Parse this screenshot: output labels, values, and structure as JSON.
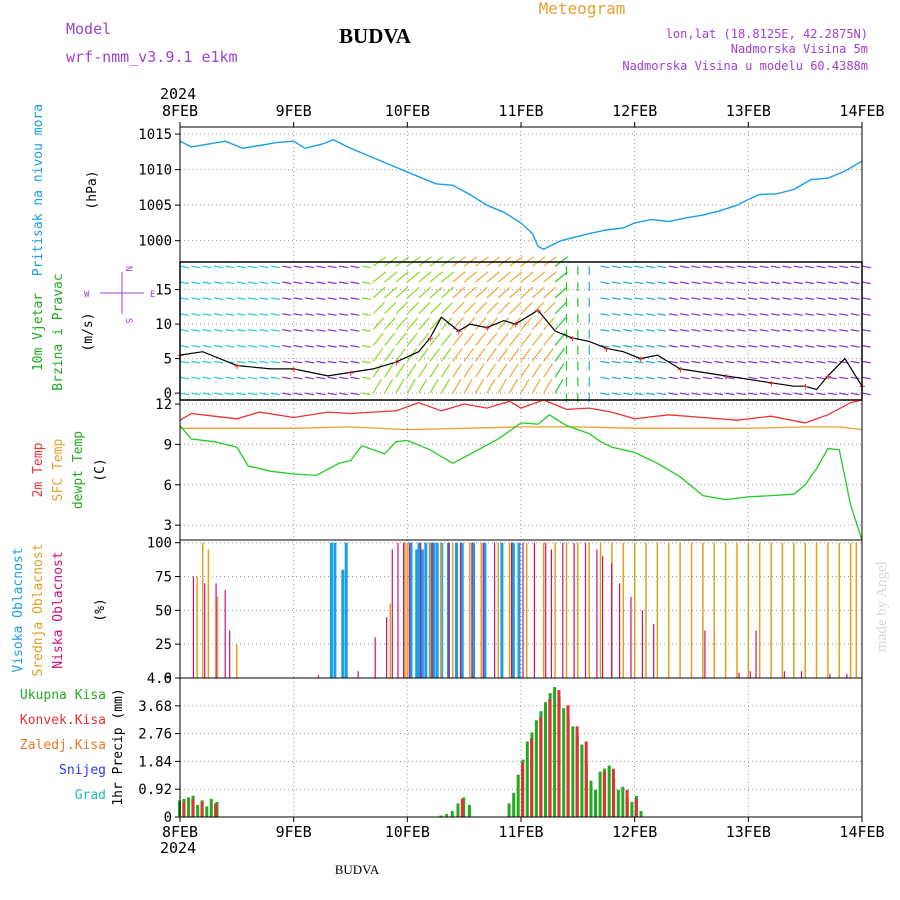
{
  "header": {
    "model_label": "Model",
    "model_name": "wrf-nmm_v3.9.1 e1km",
    "title": "BUDVA",
    "meteogram_label": "Meteogram",
    "lonlat": "lon,lat (18.8125E, 42.2875N)",
    "elevation": "Nadmorska Visina 5m",
    "model_elevation": "Nadmorska Visina u modelu 60.4388m",
    "footer": "BUDVA",
    "credit": "made by Angel"
  },
  "time_axis": {
    "year": "2024",
    "ticks": [
      "8FEB",
      "9FEB",
      "10FEB",
      "11FEB",
      "12FEB",
      "13FEB",
      "14FEB"
    ]
  },
  "colors": {
    "pressure": "#1a9ee8",
    "temp2m": "#ee3333",
    "sfc": "#e8a030",
    "dew": "#22cc22",
    "high_cloud": "#1a9ee8",
    "mid_cloud": "#e0a020",
    "low_cloud": "#cc1177",
    "precip_total": "#22aa22",
    "precip_conv": "#dd3333",
    "label_purple": "#a040d0",
    "label_orange": "#e8a030"
  },
  "chart_data": [
    {
      "type": "line",
      "panel": "pressure",
      "ylabel_left": "Pritisak na nivou mora",
      "ylabel_unit": "(hPa)",
      "ylim": [
        997,
        1016
      ],
      "yticks": [
        "1015",
        "1010",
        "1005",
        "1000"
      ],
      "grid": true,
      "series": [
        {
          "x": [
            8.0,
            8.1,
            8.25,
            8.4,
            8.55,
            8.7,
            8.85,
            9.0,
            9.1,
            9.25,
            9.35,
            9.5,
            9.65,
            9.8,
            9.95,
            10.1,
            10.25,
            10.4,
            10.55,
            10.7,
            10.85,
            11.0,
            11.1,
            11.15,
            11.2,
            11.25,
            11.35,
            11.5,
            11.6,
            11.75,
            11.9,
            12.0,
            12.15,
            12.3,
            12.45,
            12.6,
            12.75,
            12.9,
            13.0,
            13.1,
            13.25,
            13.4,
            13.55,
            13.7,
            13.85,
            14.0
          ],
          "values": [
            1014.0,
            1013.2,
            1013.6,
            1014.0,
            1013.0,
            1013.4,
            1013.8,
            1014.0,
            1013.0,
            1013.6,
            1014.2,
            1013.0,
            1012.0,
            1011.0,
            1010.0,
            1009.0,
            1008.0,
            1007.8,
            1006.5,
            1005.0,
            1004.0,
            1002.5,
            1001.0,
            999.2,
            998.8,
            999.2,
            1000.0,
            1000.6,
            1001.0,
            1001.5,
            1001.8,
            1002.5,
            1003.0,
            1002.7,
            1003.2,
            1003.6,
            1004.2,
            1005.0,
            1005.8,
            1006.5,
            1006.6,
            1007.2,
            1008.6,
            1008.8,
            1009.8,
            1011.2
          ]
        }
      ]
    },
    {
      "type": "line",
      "panel": "wind",
      "ylabel_left": "10m Vjetar",
      "ylabel_left2": "Brzina i Pravac",
      "ylabel_unit": "(m/s)",
      "rose": {
        "n": "N",
        "s": "S",
        "w": "W",
        "e": "E"
      },
      "ylim": [
        -1,
        19
      ],
      "yticks": [
        "15",
        "10",
        "5",
        "0"
      ],
      "grid": true,
      "series": [
        {
          "name": "",
          "x": [
            8.0,
            8.2,
            8.5,
            8.8,
            9.0,
            9.3,
            9.5,
            9.7,
            9.9,
            10.1,
            10.2,
            10.3,
            10.45,
            10.55,
            10.7,
            10.85,
            10.95,
            11.05,
            11.15,
            11.3,
            11.45,
            11.6,
            11.75,
            11.9,
            12.05,
            12.2,
            12.4,
            12.6,
            12.8,
            13.0,
            13.2,
            13.4,
            13.5,
            13.6,
            13.7,
            13.85,
            14.0
          ],
          "values": [
            5.5,
            6.0,
            4.0,
            3.5,
            3.5,
            2.5,
            3.0,
            3.5,
            4.5,
            6.0,
            8.0,
            11.0,
            9.0,
            10.0,
            9.5,
            10.5,
            10.0,
            11.0,
            12.0,
            9.0,
            8.0,
            7.5,
            6.5,
            6.0,
            5.0,
            5.5,
            3.5,
            3.0,
            2.5,
            2.0,
            1.5,
            1.0,
            1.0,
            0.5,
            2.5,
            5.0,
            1.0
          ]
        }
      ],
      "barbs": [
        {
          "x": 8.0,
          "speed": 5.5,
          "dir": 60
        },
        {
          "x": 8.5,
          "speed": 4.0,
          "dir": 70
        },
        {
          "x": 9.0,
          "speed": 3.5,
          "dir": 80
        },
        {
          "x": 9.5,
          "speed": 3.0,
          "dir": 90
        },
        {
          "x": 10.0,
          "speed": 5.0,
          "dir": 130
        },
        {
          "x": 10.5,
          "speed": 10.0,
          "dir": 150
        },
        {
          "x": 11.0,
          "speed": 11.0,
          "dir": 160
        },
        {
          "x": 11.3,
          "speed": 9.0,
          "dir": 230
        },
        {
          "x": 11.5,
          "speed": 8.0,
          "dir": 250
        },
        {
          "x": 12.0,
          "speed": 5.0,
          "dir": 60
        },
        {
          "x": 12.5,
          "speed": 3.5,
          "dir": 50
        },
        {
          "x": 13.0,
          "speed": 2.0,
          "dir": 40
        },
        {
          "x": 13.5,
          "speed": 1.0,
          "dir": 60
        },
        {
          "x": 14.0,
          "speed": 1.0,
          "dir": 70
        }
      ]
    },
    {
      "type": "line",
      "panel": "temperature",
      "ylabel_left": "2m Temp",
      "ylabel_left2": "SFC Temp",
      "ylabel_left3": "dewpt Temp",
      "ylabel_unit": "(C)",
      "ylim": [
        1.9,
        12.3
      ],
      "yticks": [
        "12",
        "9",
        "6",
        "3"
      ],
      "grid": true,
      "series": [
        {
          "name": "2m Temp",
          "x": [
            8.0,
            8.1,
            8.3,
            8.5,
            8.7,
            9.0,
            9.3,
            9.5,
            9.7,
            9.9,
            10.1,
            10.3,
            10.5,
            10.7,
            10.9,
            11.0,
            11.2,
            11.4,
            11.6,
            11.8,
            12.0,
            12.3,
            12.6,
            12.9,
            13.2,
            13.5,
            13.7,
            13.9,
            14.0
          ],
          "values": [
            10.8,
            11.3,
            11.1,
            10.9,
            11.4,
            11.0,
            11.4,
            11.3,
            11.4,
            11.5,
            12.1,
            11.5,
            12.0,
            11.7,
            12.2,
            11.7,
            12.3,
            11.6,
            11.7,
            11.4,
            10.9,
            11.2,
            11.0,
            10.8,
            11.1,
            10.6,
            11.2,
            12.1,
            12.3
          ]
        },
        {
          "name": "SFC Temp",
          "x": [
            8.0,
            8.5,
            9.0,
            9.5,
            10.0,
            10.5,
            11.0,
            11.5,
            12.0,
            12.5,
            13.0,
            13.5,
            13.8,
            14.0
          ],
          "values": [
            10.2,
            10.2,
            10.2,
            10.3,
            10.1,
            10.2,
            10.3,
            10.3,
            10.2,
            10.2,
            10.2,
            10.3,
            10.3,
            10.1
          ]
        },
        {
          "name": "dewpt Temp",
          "x": [
            8.0,
            8.1,
            8.3,
            8.5,
            8.6,
            8.8,
            9.0,
            9.2,
            9.4,
            9.5,
            9.6,
            9.8,
            9.9,
            10.0,
            10.2,
            10.4,
            10.6,
            10.8,
            11.0,
            11.15,
            11.25,
            11.4,
            11.5,
            11.6,
            11.7,
            11.8,
            12.0,
            12.2,
            12.4,
            12.6,
            12.8,
            13.0,
            13.2,
            13.4,
            13.5,
            13.6,
            13.7,
            13.8,
            13.9,
            14.0
          ],
          "values": [
            10.4,
            9.4,
            9.2,
            8.8,
            7.4,
            7.0,
            6.8,
            6.7,
            7.6,
            7.8,
            8.9,
            8.3,
            9.2,
            9.3,
            8.6,
            7.6,
            8.5,
            9.4,
            10.6,
            10.5,
            11.2,
            10.4,
            10.1,
            9.8,
            9.2,
            8.8,
            8.4,
            7.6,
            6.6,
            5.2,
            4.9,
            5.1,
            5.2,
            5.3,
            6.0,
            7.2,
            8.7,
            8.6,
            4.5,
            1.9
          ]
        }
      ]
    },
    {
      "type": "bar",
      "panel": "cloud",
      "ylabel_left": "Visoka Oblacnost",
      "ylabel_left2": "Srednja Oblacnost",
      "ylabel_left3": "Niska Oblacnost",
      "ylabel_unit": "(%)",
      "ylim": [
        0,
        102
      ],
      "yticks": [
        "100",
        "75",
        "50",
        "25",
        "0"
      ],
      "grid": true,
      "series": [
        {
          "name": "Visoka Oblacnost",
          "x": [
            9.35,
            9.38,
            9.45,
            9.48,
            10.05,
            10.1,
            10.12,
            10.15,
            10.18,
            10.22,
            10.25,
            10.28,
            10.32,
            10.38,
            10.45,
            10.5,
            10.6,
            10.7,
            10.85,
            10.95,
            11.0
          ],
          "values": [
            100,
            100,
            80,
            100,
            100,
            95,
            100,
            95,
            100,
            100,
            100,
            100,
            100,
            100,
            100,
            100,
            100,
            100,
            100,
            100,
            100
          ]
        },
        {
          "name": "Srednja Oblacnost",
          "x": [
            8.15,
            8.2,
            8.25,
            8.33,
            8.5,
            9.85,
            9.98,
            10.0,
            10.2,
            10.3,
            10.4,
            10.55,
            10.65,
            10.8,
            10.9,
            11.05,
            11.2,
            11.3,
            11.4,
            11.5,
            11.6,
            11.7,
            11.8,
            11.9,
            12.0,
            12.1,
            12.2,
            12.3,
            12.4,
            12.5,
            12.6,
            12.7,
            12.8,
            12.9,
            13.0,
            13.1,
            13.2,
            13.3,
            13.4,
            13.5,
            13.6,
            13.7,
            13.8,
            13.9,
            13.95
          ],
          "values": [
            75,
            100,
            95,
            60,
            25,
            55,
            100,
            100,
            100,
            100,
            100,
            100,
            100,
            100,
            100,
            100,
            100,
            100,
            100,
            100,
            100,
            100,
            100,
            100,
            100,
            100,
            100,
            100,
            100,
            100,
            100,
            100,
            100,
            100,
            100,
            100,
            100,
            100,
            100,
            100,
            100,
            100,
            100,
            100,
            100
          ]
        },
        {
          "name": "Niska Oblacnost",
          "x": [
            8.1,
            8.2,
            8.3,
            8.38,
            8.42,
            9.2,
            9.55,
            9.7,
            9.8,
            9.85,
            9.9,
            9.95,
            10.0,
            10.1,
            10.2,
            10.35,
            10.45,
            10.55,
            10.65,
            10.75,
            10.9,
            11.0,
            11.1,
            11.2,
            11.25,
            11.35,
            11.45,
            11.55,
            11.65,
            11.7,
            11.78,
            11.85,
            11.95,
            12.05,
            12.15,
            12.6,
            12.9,
            13.0,
            13.05,
            13.3,
            13.45,
            13.7,
            13.85
          ],
          "values": [
            75,
            70,
            70,
            65,
            35,
            2,
            5,
            30,
            45,
            95,
            100,
            100,
            100,
            100,
            100,
            100,
            100,
            100,
            100,
            100,
            100,
            100,
            100,
            100,
            95,
            100,
            100,
            100,
            95,
            90,
            85,
            70,
            60,
            50,
            40,
            35,
            4,
            5,
            35,
            5,
            5,
            3,
            3
          ]
        }
      ]
    },
    {
      "type": "bar",
      "panel": "precip",
      "legend": [
        "Ukupna Kisa",
        "Konvek.Kisa",
        "Zaledj.Kisa",
        "Snijeg",
        "Grad"
      ],
      "ylabel_unit": "1hr Precip (mm)",
      "ylim": [
        0,
        4.6
      ],
      "yticks": [
        "4.6",
        "3.68",
        "2.76",
        "1.84",
        "0.92",
        "0"
      ],
      "grid": true,
      "series": [
        {
          "name": "Ukupna Kisa",
          "x": [
            8.0,
            8.04,
            8.08,
            8.12,
            8.16,
            8.2,
            8.24,
            8.28,
            8.33,
            10.3,
            10.35,
            10.4,
            10.45,
            10.5,
            10.55,
            10.9,
            10.94,
            10.98,
            11.02,
            11.06,
            11.1,
            11.14,
            11.18,
            11.22,
            11.26,
            11.3,
            11.34,
            11.38,
            11.42,
            11.46,
            11.5,
            11.54,
            11.58,
            11.62,
            11.66,
            11.7,
            11.74,
            11.78,
            11.82,
            11.86,
            11.9,
            11.94,
            11.98,
            12.02,
            12.06
          ],
          "values": [
            0.55,
            0.6,
            0.65,
            0.7,
            0.4,
            0.55,
            0.35,
            0.6,
            0.5,
            0.05,
            0.1,
            0.2,
            0.45,
            0.65,
            0.4,
            0.45,
            0.8,
            1.4,
            1.9,
            2.5,
            2.8,
            3.2,
            3.5,
            3.8,
            4.1,
            4.3,
            4.0,
            3.6,
            3.3,
            3.0,
            2.7,
            2.4,
            1.8,
            1.2,
            0.9,
            1.5,
            1.6,
            1.7,
            1.3,
            0.9,
            1.0,
            0.6,
            0.5,
            0.7,
            0.2
          ]
        },
        {
          "name": "Konvek.Kisa",
          "x": [
            8.02,
            8.1,
            8.18,
            8.3,
            10.47,
            11.0,
            11.08,
            11.16,
            11.24,
            11.32,
            11.4,
            11.48,
            11.56,
            11.72,
            11.8,
            11.92,
            12.0
          ],
          "values": [
            0.5,
            0.6,
            0.5,
            0.45,
            0.6,
            1.8,
            2.6,
            3.3,
            3.9,
            4.2,
            3.7,
            3.0,
            2.5,
            1.5,
            1.6,
            0.9,
            0.6
          ]
        }
      ]
    }
  ]
}
